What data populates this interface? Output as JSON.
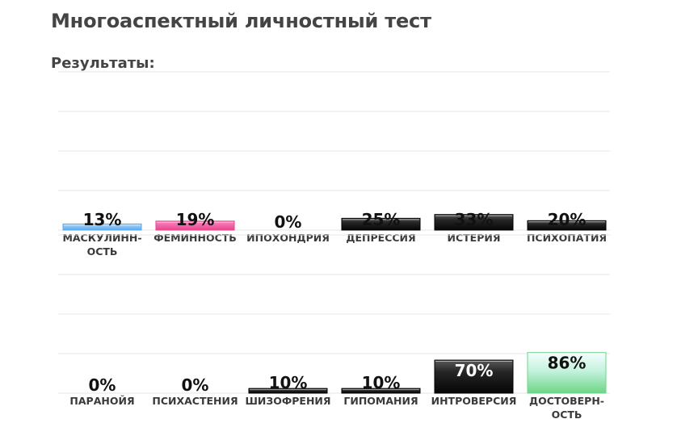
{
  "page": {
    "title": "Многоаспектный личностный тест",
    "subtitle": "Результаты:"
  },
  "colors": {
    "masculinity": "#7fbff5",
    "femininity": "#f0549d",
    "dark": "#151515",
    "validity": "#7ddc95",
    "grid": "#e6e6e6"
  },
  "chart_data": [
    {
      "type": "bar",
      "categories": [
        "МАСКУЛИНН-ОСТЬ",
        "ФЕМИННОСТЬ",
        "ИПОХОНДРИЯ",
        "ДЕПРЕССИЯ",
        "ИСТЕРИЯ",
        "ПСИХОПАТИЯ"
      ],
      "category_lines": [
        [
          "МАСКУЛИНН-",
          "ОСТЬ"
        ],
        [
          "ФЕМИННОСТЬ"
        ],
        [
          "ИПОХОНДРИЯ"
        ],
        [
          "ДЕПРЕССИЯ"
        ],
        [
          "ИСТЕРИЯ"
        ],
        [
          "ПСИХОПАТИЯ"
        ]
      ],
      "values": [
        13,
        19,
        0,
        25,
        33,
        20
      ],
      "value_labels": [
        "13%",
        "19%",
        "0%",
        "25%",
        "33%",
        "20%"
      ],
      "bar_colors": [
        "masculinity",
        "femininity",
        "dark",
        "dark",
        "dark",
        "dark"
      ],
      "ylim": [
        0,
        100
      ],
      "grid": true
    },
    {
      "type": "bar",
      "categories": [
        "ПАРАНОЙЯ",
        "ПСИХАСТЕНИЯ",
        "ШИЗОФРЕНИЯ",
        "ГИПОМАНИЯ",
        "ИНТРОВЕРСИЯ",
        "ДОСТОВЕРН-ОСТЬ"
      ],
      "category_lines": [
        [
          "ПАРАНОЙЯ"
        ],
        [
          "ПСИХАСТЕНИЯ"
        ],
        [
          "ШИЗОФРЕНИЯ"
        ],
        [
          "ГИПОМАНИЯ"
        ],
        [
          "ИНТРОВЕРСИЯ"
        ],
        [
          "ДОСТОВЕРН-",
          "ОСТЬ"
        ]
      ],
      "values": [
        0,
        0,
        10,
        10,
        70,
        86
      ],
      "value_labels": [
        "0%",
        "0%",
        "10%",
        "10%",
        "70%",
        "86%"
      ],
      "bar_colors": [
        "dark",
        "dark",
        "dark",
        "dark",
        "dark",
        "validity"
      ],
      "ylim": [
        0,
        100
      ],
      "grid": true
    }
  ]
}
